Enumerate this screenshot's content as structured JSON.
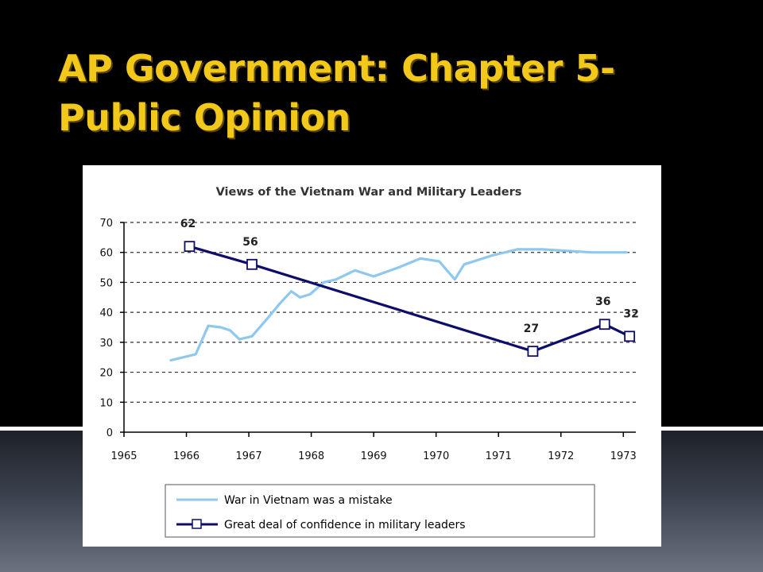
{
  "slide": {
    "title_line1": "AP Government: Chapter 5-",
    "title_line2": "Public Opinion"
  },
  "colors": {
    "title": "#f2c81a",
    "mistake_series": "#8ec8ee",
    "confidence_series": "#0d0d6b",
    "background_top": "#000000"
  },
  "chart_data": {
    "type": "line",
    "title": "Views of the Vietnam War and Military Leaders",
    "xlabel": "",
    "ylabel": "",
    "xlim": [
      1965,
      1973.2
    ],
    "ylim": [
      0,
      70
    ],
    "x_ticks": [
      "1965",
      "1966",
      "1967",
      "1968",
      "1969",
      "1970",
      "1971",
      "1972",
      "1973"
    ],
    "y_ticks": [
      "0",
      "10",
      "20",
      "30",
      "40",
      "50",
      "60",
      "70"
    ],
    "grid": "horizontal dashed",
    "legend_position": "bottom",
    "series": [
      {
        "name": "War in Vietnam was a mistake",
        "marker": "none",
        "points": [
          [
            1965.75,
            24
          ],
          [
            1966.15,
            26
          ],
          [
            1966.35,
            35.5
          ],
          [
            1966.55,
            35
          ],
          [
            1966.7,
            34
          ],
          [
            1966.85,
            31
          ],
          [
            1967.05,
            32
          ],
          [
            1967.3,
            38
          ],
          [
            1967.5,
            43
          ],
          [
            1967.68,
            47
          ],
          [
            1967.82,
            45
          ],
          [
            1967.98,
            46
          ],
          [
            1968.2,
            50
          ],
          [
            1968.4,
            51
          ],
          [
            1968.7,
            54
          ],
          [
            1969.0,
            52
          ],
          [
            1969.4,
            55
          ],
          [
            1969.75,
            58
          ],
          [
            1970.05,
            57
          ],
          [
            1970.3,
            51
          ],
          [
            1970.45,
            56
          ],
          [
            1970.9,
            59
          ],
          [
            1971.3,
            61
          ],
          [
            1971.7,
            61
          ],
          [
            1972.1,
            60.5
          ],
          [
            1972.5,
            60
          ],
          [
            1972.8,
            60
          ],
          [
            1973.05,
            60
          ]
        ]
      },
      {
        "name": "Great deal of confidence in military leaders",
        "marker": "square",
        "points": [
          [
            1966.05,
            62
          ],
          [
            1967.05,
            56
          ],
          [
            1971.55,
            27
          ],
          [
            1972.7,
            36
          ],
          [
            1973.1,
            32
          ]
        ],
        "labels": [
          "62",
          "56",
          "27",
          "36",
          "32"
        ]
      }
    ]
  }
}
